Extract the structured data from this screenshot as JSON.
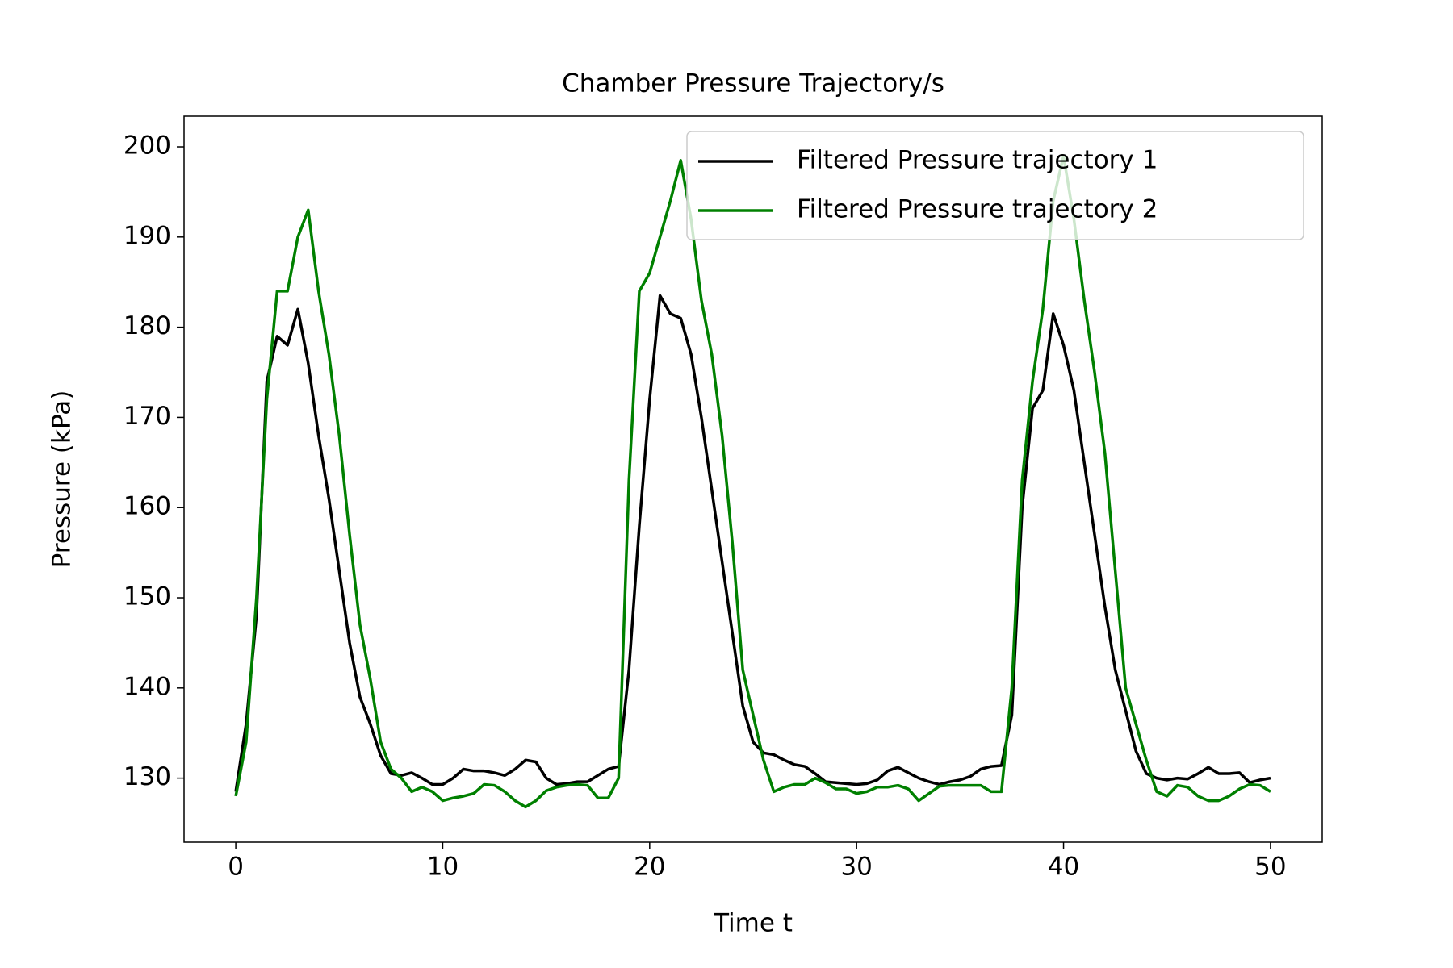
{
  "chart_data": {
    "type": "line",
    "title": "Chamber Pressure Trajectory/s",
    "xlabel": "Time t",
    "ylabel": "Pressure (kPa)",
    "xlim": [
      -2.5,
      52.5
    ],
    "ylim": [
      122.9,
      203.4
    ],
    "xticks": [
      0,
      10,
      20,
      30,
      40,
      50
    ],
    "yticks": [
      130,
      140,
      150,
      160,
      170,
      180,
      190,
      200
    ],
    "grid": false,
    "legend": "upper right",
    "x": [
      0,
      0.5,
      1,
      1.5,
      2,
      2.5,
      3,
      3.5,
      4,
      4.5,
      5,
      5.5,
      6,
      6.5,
      7,
      7.5,
      8,
      8.5,
      9,
      9.5,
      10,
      10.5,
      11,
      11.5,
      12,
      12.5,
      13,
      13.5,
      14,
      14.5,
      15,
      15.5,
      16,
      16.5,
      17,
      17.5,
      18,
      18.5,
      19,
      19.5,
      20,
      20.5,
      21,
      21.5,
      22,
      22.5,
      23,
      23.5,
      24,
      24.5,
      25,
      25.5,
      26,
      26.5,
      27,
      27.5,
      28,
      28.5,
      29,
      29.5,
      30,
      30.5,
      31,
      31.5,
      32,
      32.5,
      33,
      33.5,
      34,
      34.5,
      35,
      35.5,
      36,
      36.5,
      37,
      37.5,
      38,
      38.5,
      39,
      39.5,
      40,
      40.5,
      41,
      41.5,
      42,
      42.5,
      43,
      43.5,
      44,
      44.5,
      45,
      45.5,
      46,
      46.5,
      47,
      47.5,
      48,
      48.5,
      49,
      49.5,
      50
    ],
    "series": [
      {
        "name": "Filtered Pressure trajectory 1",
        "color": "#000000",
        "values": [
          128.5,
          136,
          148,
          174,
          179,
          178,
          182,
          176,
          168,
          161,
          153,
          145,
          139,
          136,
          132.5,
          130.5,
          130.3,
          130.6,
          130,
          129.3,
          129.3,
          130,
          131,
          130.8,
          130.8,
          130.6,
          130.3,
          131,
          132,
          131.8,
          130,
          129.3,
          129.4,
          129.6,
          129.6,
          130.3,
          131,
          131.3,
          142,
          158,
          172,
          183.5,
          181.5,
          181,
          177,
          170,
          162,
          154,
          146,
          138,
          134,
          132.8,
          132.6,
          132,
          131.5,
          131.3,
          130.5,
          129.6,
          129.5,
          129.4,
          129.3,
          129.4,
          129.8,
          130.8,
          131.2,
          130.6,
          130,
          129.6,
          129.3,
          129.6,
          129.8,
          130.2,
          131,
          131.3,
          131.4,
          137,
          160,
          171,
          173,
          181.5,
          178,
          173,
          165,
          157,
          149,
          142,
          137.5,
          133,
          130.5,
          130,
          129.8,
          130,
          129.9,
          130.5,
          131.2,
          130.5,
          130.5,
          130.6,
          129.5,
          129.8,
          130
        ]
      },
      {
        "name": "Filtered Pressure trajectory 2",
        "color": "#008000",
        "values": [
          128,
          134,
          150,
          172,
          184,
          184,
          190,
          193,
          184,
          177,
          168,
          157,
          147,
          141,
          134,
          131,
          130,
          128.5,
          129,
          128.5,
          127.5,
          127.8,
          128,
          128.3,
          129.3,
          129.2,
          128.5,
          127.5,
          126.8,
          127.5,
          128.6,
          129,
          129.2,
          129.3,
          129.2,
          127.8,
          127.8,
          130,
          163,
          184,
          186,
          190,
          194,
          198.5,
          192,
          183,
          177,
          168,
          156,
          142,
          137,
          132,
          128.5,
          129,
          129.3,
          129.3,
          130,
          129.5,
          128.8,
          128.8,
          128.3,
          128.5,
          129,
          129,
          129.2,
          128.8,
          127.5,
          128.3,
          129.1,
          129.2,
          129.2,
          129.2,
          129.2,
          128.5,
          128.5,
          140,
          163,
          174,
          182,
          194,
          199,
          192,
          183,
          175,
          166,
          153,
          140,
          136,
          132,
          128.5,
          128,
          129.2,
          129,
          128,
          127.5,
          127.5,
          128,
          128.8,
          129.3,
          129.2,
          128.5
        ]
      }
    ]
  }
}
